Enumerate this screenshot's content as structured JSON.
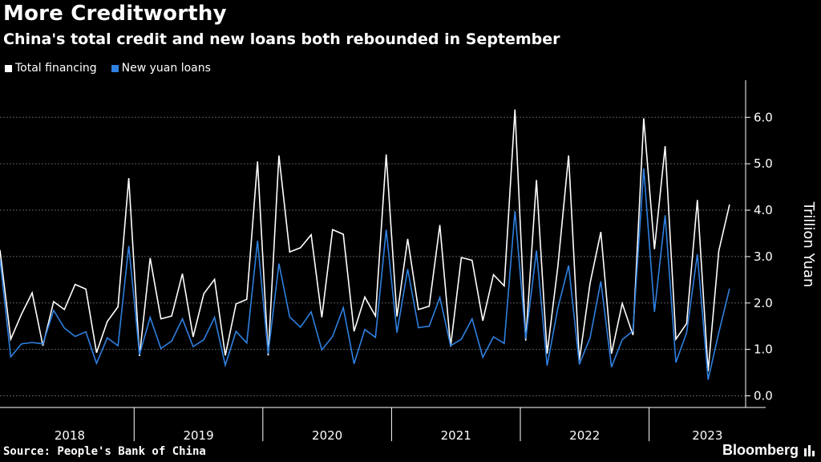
{
  "header": {
    "title": "More Creditworthy",
    "subtitle": "China's total credit and new loans both rebounded in September"
  },
  "footer": {
    "source": "Source: People's Bank of China",
    "brand": "Bloomberg"
  },
  "chart_data": {
    "type": "line",
    "title": "More Creditworthy",
    "subtitle": "China's total credit and new loans both rebounded in September",
    "xlabel": "",
    "ylabel": "Trillion Yuan",
    "ylim": [
      -0.25,
      6.8
    ],
    "yticks": [
      0.0,
      1.0,
      2.0,
      3.0,
      4.0,
      5.0,
      6.0
    ],
    "ytick_labels": [
      "0.0",
      "1.0",
      "2.0",
      "3.0",
      "4.0",
      "5.0",
      "6.0"
    ],
    "grid": true,
    "legend_position": "top-left",
    "years": [
      "2018",
      "2019",
      "2020",
      "2021",
      "2022",
      "2023"
    ],
    "x_start": "2017-12",
    "x_end": "2023-09",
    "series": [
      {
        "name": "Total financing",
        "color": "#ffffff",
        "values": [
          3.14,
          1.22,
          1.76,
          2.22,
          1.08,
          2.03,
          1.86,
          2.4,
          2.3,
          0.93,
          1.6,
          1.92,
          4.69,
          0.86,
          2.97,
          1.66,
          1.72,
          2.63,
          1.27,
          2.2,
          2.51,
          0.87,
          1.98,
          2.08,
          5.05,
          0.87,
          5.18,
          3.1,
          3.19,
          3.47,
          1.69,
          3.58,
          3.48,
          1.39,
          2.13,
          1.72,
          5.2,
          1.71,
          3.38,
          1.86,
          1.93,
          3.68,
          1.06,
          2.98,
          2.92,
          1.62,
          2.61,
          2.37,
          6.17,
          1.19,
          4.65,
          0.91,
          2.79,
          5.18,
          0.76,
          2.43,
          3.53,
          0.91,
          1.99,
          1.31,
          5.98,
          3.16,
          5.38,
          1.22,
          1.56,
          4.22,
          0.53,
          3.12,
          4.12
        ]
      },
      {
        "name": "New yuan loans",
        "color": "#2f80e0",
        "values": [
          2.94,
          0.84,
          1.12,
          1.15,
          1.12,
          1.84,
          1.46,
          1.28,
          1.38,
          0.7,
          1.25,
          1.08,
          3.23,
          0.89,
          1.69,
          1.02,
          1.18,
          1.66,
          1.06,
          1.21,
          1.69,
          0.66,
          1.39,
          1.14,
          3.34,
          0.91,
          2.85,
          1.7,
          1.48,
          1.81,
          0.99,
          1.28,
          1.9,
          0.69,
          1.43,
          1.26,
          3.58,
          1.36,
          2.73,
          1.47,
          1.5,
          2.12,
          1.08,
          1.22,
          1.66,
          0.83,
          1.27,
          1.13,
          3.98,
          1.23,
          3.13,
          0.65,
          1.89,
          2.81,
          0.68,
          1.25,
          2.47,
          0.62,
          1.21,
          1.4,
          4.9,
          1.81,
          3.89,
          0.72,
          1.36,
          3.05,
          0.35,
          1.36,
          2.31
        ]
      }
    ]
  }
}
